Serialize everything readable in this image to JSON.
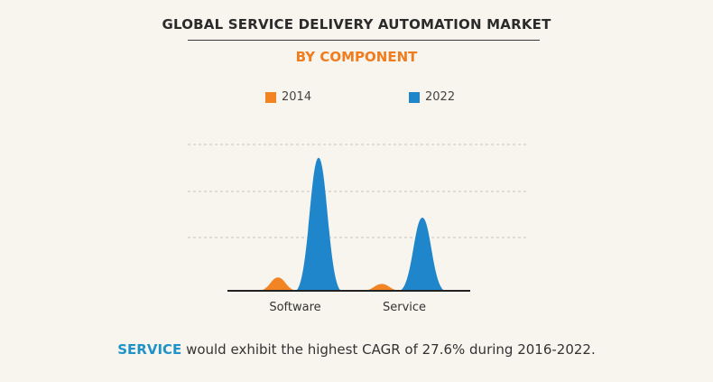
{
  "title": "GLOBAL SERVICE DELIVERY AUTOMATION MARKET",
  "subtitle": "BY COMPONENT",
  "footer": {
    "highlight": "SERVICE",
    "text": " would exhibit the highest CAGR of 27.6% during 2016-2022."
  },
  "colors": {
    "2014": "#f28424",
    "2022": "#1f86cc"
  },
  "chart_data": {
    "type": "area",
    "categories": [
      "Software",
      "Service"
    ],
    "series": [
      {
        "name": "2014",
        "values": [
          5,
          2.6
        ]
      },
      {
        "name": "2022",
        "values": [
          50,
          27.5
        ]
      }
    ],
    "ylim": [
      0,
      55
    ],
    "grid": true,
    "legend": "top"
  }
}
